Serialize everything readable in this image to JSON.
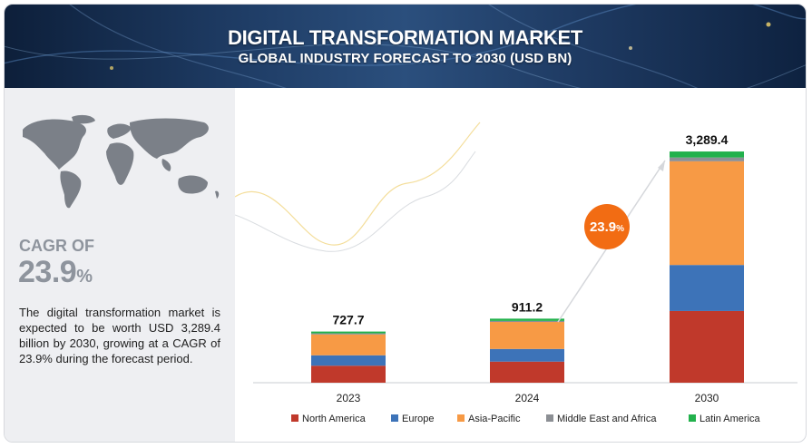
{
  "header": {
    "title": "DIGITAL TRANSFORMATION MARKET",
    "subtitle": "GLOBAL INDUSTRY FORECAST TO 2030 (USD BN)"
  },
  "sidebar": {
    "cagr_label": "CAGR OF",
    "cagr_number": "23.9",
    "cagr_unit": "%",
    "description": "The digital transformation market is expected to be worth USD 3,289.4 billion by 2030, growing at a CAGR of 23.9% during the forecast period."
  },
  "callout": {
    "number": "23.9",
    "unit": "%"
  },
  "colors": {
    "banner": "#1f3d66",
    "north_america": "#c0392b",
    "europe": "#3d73b8",
    "asia_pacific": "#f79a45",
    "middle_east_africa": "#8c8f94",
    "latin_america": "#22b14c",
    "callout": "#f26c13"
  },
  "chart_data": {
    "type": "bar",
    "stacked": true,
    "categories": [
      "2023",
      "2024",
      "2030"
    ],
    "totals": [
      727.7,
      911.2,
      3289.4
    ],
    "total_labels": [
      "727.7",
      "911.2",
      "3,289.4"
    ],
    "series": [
      {
        "name": "North America",
        "values": [
          242,
          300,
          1020
        ]
      },
      {
        "name": "Europe",
        "values": [
          148,
          180,
          655
        ]
      },
      {
        "name": "Asia-Pacific",
        "values": [
          297,
          384,
          1475
        ]
      },
      {
        "name": "Middle East and Africa",
        "values": [
          15,
          15,
          54
        ]
      },
      {
        "name": "Latin America",
        "values": [
          25.7,
          32.2,
          85.4
        ]
      }
    ],
    "ylim": [
      0,
      3400
    ],
    "legend_position": "bottom",
    "grid": false
  }
}
